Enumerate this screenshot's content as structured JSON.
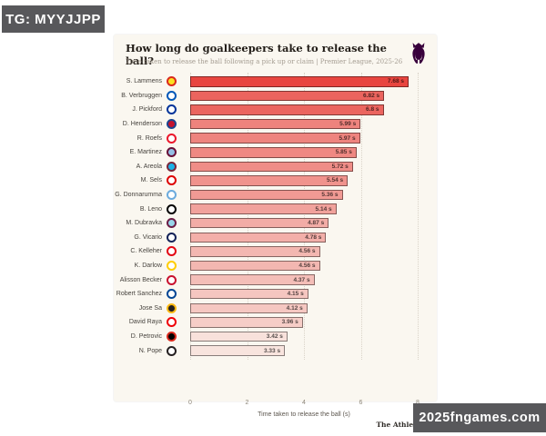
{
  "overlay": {
    "badge_text": "TG: MYYJJPP",
    "watermark_text": "2025fngames.com",
    "badge_color": "#58585b"
  },
  "card": {
    "title": "How long do goalkeepers take to release the ball?",
    "subtitle": "Time taken to release the ball following a pick up or claim | Premier League, 2025-26",
    "source": "The Athletic",
    "background": "#faf7f0",
    "logo": "premier-league-lion",
    "logo_color": "#38003c"
  },
  "chart_data": {
    "type": "bar",
    "orientation": "horizontal",
    "title": "How long do goalkeepers take to release the ball?",
    "subtitle": "Time taken to release the ball following a pick up or claim | Premier League, 2025-26",
    "xlabel": "Time taken to release the ball (s)",
    "xlim": [
      0,
      8
    ],
    "xticks": [
      0,
      2,
      4,
      6,
      8
    ],
    "grid": "vertical-dotted",
    "legend": "none",
    "color_scale": {
      "high_value_color": "#e8453f",
      "low_value_color": "#f8e4de"
    },
    "rows": [
      {
        "player": "S. Lammens",
        "value": 7.68,
        "label": "7.68 s",
        "crest": "manchester-united-crest-icon",
        "crest_colors": [
          "#da291c",
          "#fbe122"
        ]
      },
      {
        "player": "B. Verbruggen",
        "value": 6.82,
        "label": "6.82 s",
        "crest": "brighton-crest-icon",
        "crest_colors": [
          "#0057b8",
          "#ffffff"
        ]
      },
      {
        "player": "J. Pickford",
        "value": 6.8,
        "label": "6.8 s",
        "crest": "everton-crest-icon",
        "crest_colors": [
          "#003399",
          "#ffffff"
        ]
      },
      {
        "player": "D. Henderson",
        "value": 5.99,
        "label": "5.99 s",
        "crest": "crystal-palace-crest-icon",
        "crest_colors": [
          "#1b458f",
          "#c4122e"
        ]
      },
      {
        "player": "R. Roefs",
        "value": 5.97,
        "label": "5.97 s",
        "crest": "sunderland-crest-icon",
        "crest_colors": [
          "#eb172b",
          "#ffffff"
        ]
      },
      {
        "player": "E. Martinez",
        "value": 5.85,
        "label": "5.85 s",
        "crest": "aston-villa-crest-icon",
        "crest_colors": [
          "#670e36",
          "#95bfe5"
        ]
      },
      {
        "player": "A. Areola",
        "value": 5.72,
        "label": "5.72 s",
        "crest": "west-ham-crest-icon",
        "crest_colors": [
          "#7a263a",
          "#1bb1e7"
        ]
      },
      {
        "player": "M. Sels",
        "value": 5.54,
        "label": "5.54 s",
        "crest": "nottingham-forest-crest-icon",
        "crest_colors": [
          "#dd0000",
          "#ffffff"
        ]
      },
      {
        "player": "G. Donnarumma",
        "value": 5.36,
        "label": "5.36 s",
        "crest": "manchester-city-crest-icon",
        "crest_colors": [
          "#6cabdd",
          "#ffffff"
        ]
      },
      {
        "player": "B. Leno",
        "value": 5.14,
        "label": "5.14 s",
        "crest": "fulham-crest-icon",
        "crest_colors": [
          "#000000",
          "#ffffff"
        ]
      },
      {
        "player": "M. Dubravka",
        "value": 4.87,
        "label": "4.87 s",
        "crest": "burnley-crest-icon",
        "crest_colors": [
          "#6c1d45",
          "#99d6ea"
        ]
      },
      {
        "player": "G. Vicario",
        "value": 4.78,
        "label": "4.78 s",
        "crest": "tottenham-crest-icon",
        "crest_colors": [
          "#132257",
          "#ffffff"
        ]
      },
      {
        "player": "C. Kelleher",
        "value": 4.56,
        "label": "4.56 s",
        "crest": "brentford-crest-icon",
        "crest_colors": [
          "#e30613",
          "#ffffff"
        ]
      },
      {
        "player": "K. Darlow",
        "value": 4.56,
        "label": "4.56 s",
        "crest": "leeds-crest-icon",
        "crest_colors": [
          "#ffcd00",
          "#ffffff"
        ]
      },
      {
        "player": "Alisson Becker",
        "value": 4.37,
        "label": "4.37 s",
        "crest": "liverpool-crest-icon",
        "crest_colors": [
          "#c8102e",
          "#ffffff"
        ]
      },
      {
        "player": "Robert Sanchez",
        "value": 4.15,
        "label": "4.15 s",
        "crest": "chelsea-crest-icon",
        "crest_colors": [
          "#034694",
          "#ffffff"
        ]
      },
      {
        "player": "Jose Sa",
        "value": 4.12,
        "label": "4.12 s",
        "crest": "wolves-crest-icon",
        "crest_colors": [
          "#fdb913",
          "#231f20"
        ]
      },
      {
        "player": "David Raya",
        "value": 3.96,
        "label": "3.96 s",
        "crest": "arsenal-crest-icon",
        "crest_colors": [
          "#ef0107",
          "#ffffff"
        ]
      },
      {
        "player": "D. Petrovic",
        "value": 3.42,
        "label": "3.42 s",
        "crest": "bournemouth-crest-icon",
        "crest_colors": [
          "#da291c",
          "#000000"
        ]
      },
      {
        "player": "N. Pope",
        "value": 3.33,
        "label": "3.33 s",
        "crest": "newcastle-crest-icon",
        "crest_colors": [
          "#241f20",
          "#ffffff"
        ]
      }
    ]
  }
}
